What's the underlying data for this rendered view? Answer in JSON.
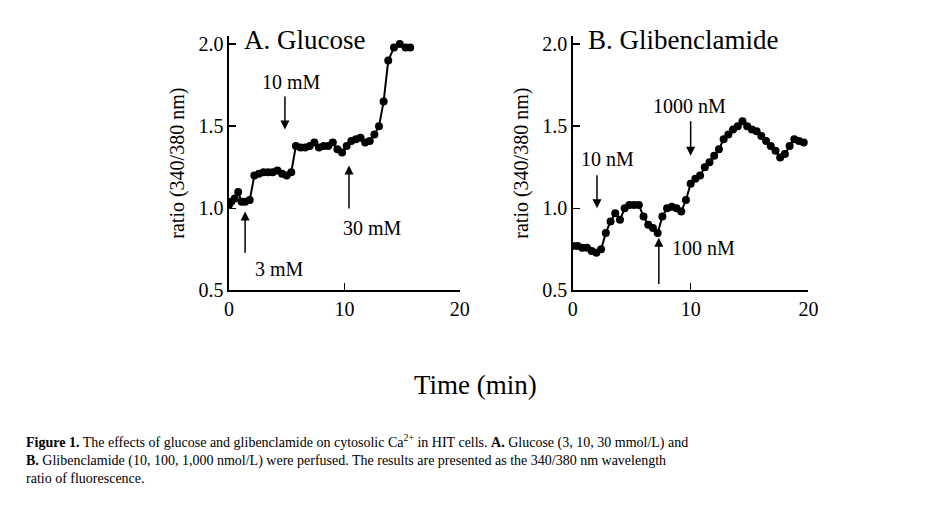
{
  "chart_data": [
    {
      "type": "line",
      "title": "A. Glucose",
      "y_label": "ratio (340/380 nm)",
      "color": "#000000",
      "marker": "circle",
      "line_style": "solid",
      "x": [
        0,
        0.2,
        0.5,
        0.8,
        1.1,
        1.4,
        1.8,
        2.2,
        2.6,
        3.0,
        3.4,
        3.8,
        4.2,
        4.6,
        5.0,
        5.4,
        5.8,
        6.2,
        6.6,
        7.0,
        7.4,
        7.8,
        8.2,
        8.6,
        9.0,
        9.4,
        9.8,
        10.2,
        10.6,
        11.0,
        11.4,
        11.8,
        12.2,
        12.6,
        13.0,
        13.4,
        13.8,
        14.3,
        14.8,
        15.3,
        15.7
      ],
      "values": [
        1.02,
        1.04,
        1.06,
        1.1,
        1.04,
        1.04,
        1.05,
        1.2,
        1.21,
        1.22,
        1.22,
        1.22,
        1.23,
        1.21,
        1.2,
        1.22,
        1.38,
        1.37,
        1.37,
        1.38,
        1.4,
        1.37,
        1.38,
        1.38,
        1.4,
        1.36,
        1.34,
        1.38,
        1.41,
        1.42,
        1.43,
        1.4,
        1.41,
        1.45,
        1.5,
        1.65,
        1.9,
        1.98,
        2.0,
        1.98,
        1.98
      ],
      "xlim": [
        0,
        20
      ],
      "xticks": [
        0,
        10,
        20
      ],
      "ylim": [
        0.5,
        2.05
      ],
      "yticks": [
        0.5,
        {
          "value": 1,
          "label": "1.0"
        },
        1.5,
        {
          "value": 2,
          "label": "2.0"
        }
      ],
      "grid": false,
      "annotations": [
        {
          "text": "3 mM",
          "x": 4.4,
          "y": 0.63,
          "arrow_x": 1.4,
          "arrow_from": 0.72,
          "arrow_to": 0.98
        },
        {
          "text": "10 mM",
          "x": 5.45,
          "y": 1.77,
          "arrow_x": 4.85,
          "arrow_from": 1.69,
          "arrow_to": 1.48
        },
        {
          "text": "30 mM",
          "x": 12.4,
          "y": 0.88,
          "arrow_x": 10.4,
          "arrow_from": 0.99,
          "arrow_to": 1.26
        }
      ]
    },
    {
      "type": "line",
      "title": "B. Glibenclamide",
      "y_label": "ratio (340/380 nm)",
      "color": "#000000",
      "marker": "circle",
      "line_style": "solid",
      "x": [
        0,
        0.4,
        0.8,
        1.2,
        1.6,
        2.0,
        2.4,
        2.8,
        3.2,
        3.6,
        4.0,
        4.4,
        4.8,
        5.2,
        5.6,
        6.0,
        6.4,
        6.8,
        7.2,
        7.6,
        8.0,
        8.4,
        8.8,
        9.2,
        9.6,
        10.0,
        10.4,
        10.8,
        11.2,
        11.6,
        12.0,
        12.4,
        12.8,
        13.2,
        13.6,
        14.0,
        14.4,
        14.8,
        15.2,
        15.6,
        16.0,
        16.4,
        16.8,
        17.2,
        17.6,
        18.0,
        18.4,
        18.8,
        19.2,
        19.6
      ],
      "values": [
        0.77,
        0.77,
        0.76,
        0.76,
        0.74,
        0.73,
        0.75,
        0.85,
        0.92,
        0.97,
        0.93,
        1.0,
        1.02,
        1.02,
        1.02,
        0.95,
        0.9,
        0.88,
        0.85,
        0.95,
        1.0,
        1.01,
        1.0,
        0.98,
        1.05,
        1.15,
        1.18,
        1.2,
        1.25,
        1.28,
        1.32,
        1.36,
        1.42,
        1.45,
        1.48,
        1.5,
        1.53,
        1.5,
        1.48,
        1.47,
        1.44,
        1.41,
        1.38,
        1.35,
        1.31,
        1.33,
        1.38,
        1.42,
        1.41,
        1.4
      ],
      "xlim": [
        0,
        20
      ],
      "xticks": [
        0,
        10,
        20
      ],
      "ylim": [
        0.5,
        2.05
      ],
      "yticks": [
        0.5,
        {
          "value": 1,
          "label": "1.0"
        },
        1.5,
        {
          "value": 2,
          "label": "2.0"
        }
      ],
      "grid": false,
      "annotations": [
        {
          "text": "10 nM",
          "x": 2.9,
          "y": 1.3,
          "arrow_x": 2.05,
          "arrow_from": 1.21,
          "arrow_to": 1.0
        },
        {
          "text": "100 nM",
          "x": 11.1,
          "y": 0.76,
          "arrow_x": 7.3,
          "arrow_from": 0.53,
          "arrow_to": 0.82
        },
        {
          "text": "1000 nM",
          "x": 9.9,
          "y": 1.625,
          "arrow_x": 10.0,
          "arrow_from": 1.54,
          "arrow_to": 1.32
        }
      ]
    }
  ],
  "x_label": "Time (min)",
  "caption": [
    [
      {
        "text": "Figure 1.",
        "style": "bold"
      },
      {
        "text": " The effects of glucose and glibenclamide on cytosolic Ca"
      },
      {
        "text": "2+",
        "style": "sup"
      },
      {
        "text": " in HIT cells. "
      },
      {
        "text": "A.",
        "style": "bold"
      },
      {
        "text": " Glucose (3, 10, 30 mmol/L) and"
      }
    ],
    [
      {
        "text": "B.",
        "style": "bold"
      },
      {
        "text": " Glibenclamide (10, 100, 1,000 nmol/L) were perfused. The results are presented as the 340/380 nm wavelength"
      }
    ],
    [
      {
        "text": "ratio of fluorescence."
      }
    ]
  ]
}
